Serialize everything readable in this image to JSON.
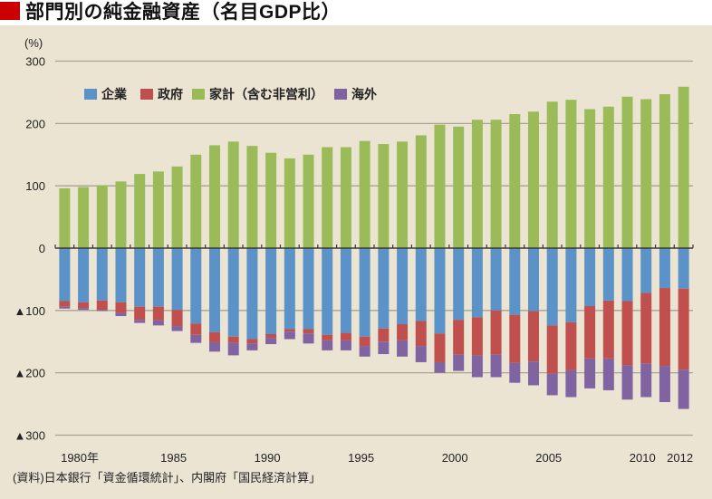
{
  "header": {
    "title": "部門別の純金融資産（名目GDP比）",
    "title_mark_color": "#cc0000"
  },
  "source": "(資料)日本銀行「資金循環統計」、内閣府「国民経済計算」",
  "chart_data": {
    "type": "bar",
    "stacked": true,
    "title": "部門別の純金融資産（名目GDP比）",
    "xlabel": "",
    "ylabel": "(%)",
    "ylim": [
      -300,
      300
    ],
    "grid": true,
    "legend_position": "top-left",
    "y_ticks": [
      {
        "value": 300,
        "label": "300"
      },
      {
        "value": 200,
        "label": "200"
      },
      {
        "value": 100,
        "label": "100"
      },
      {
        "value": 0,
        "label": "0"
      },
      {
        "value": -100,
        "label": "▲100"
      },
      {
        "value": -200,
        "label": "▲200"
      },
      {
        "value": -300,
        "label": "▲300"
      }
    ],
    "x_ticks": [
      {
        "year": 1980,
        "label": "1980年"
      },
      {
        "year": 1985,
        "label": "1985"
      },
      {
        "year": 1990,
        "label": "1990"
      },
      {
        "year": 1995,
        "label": "1995"
      },
      {
        "year": 2000,
        "label": "2000"
      },
      {
        "year": 2005,
        "label": "2005"
      },
      {
        "year": 2010,
        "label": "2010"
      },
      {
        "year": 2012,
        "label": "2012"
      }
    ],
    "categories": [
      1979,
      1980,
      1981,
      1982,
      1983,
      1984,
      1985,
      1986,
      1987,
      1988,
      1989,
      1990,
      1991,
      1992,
      1993,
      1994,
      1995,
      1996,
      1997,
      1998,
      1999,
      2000,
      2001,
      2002,
      2003,
      2004,
      2005,
      2006,
      2007,
      2008,
      2009,
      2010,
      2011,
      2012
    ],
    "series": [
      {
        "key": "corporate",
        "name": "企業",
        "color": "#5b93c9",
        "values": [
          -85,
          -87,
          -84,
          -87,
          -94,
          -94,
          -99,
          -121,
          -135,
          -142,
          -146,
          -138,
          -130,
          -130,
          -139,
          -136,
          -142,
          -129,
          -122,
          -117,
          -137,
          -115,
          -111,
          -100,
          -107,
          -101,
          -124,
          -119,
          -93,
          -84,
          -85,
          -72,
          -64,
          -65
        ]
      },
      {
        "key": "government",
        "name": "政府",
        "color": "#c0504d",
        "values": [
          -9,
          -9,
          -15,
          -17,
          -21,
          -22,
          -26,
          -18,
          -16,
          -10,
          -7,
          -6,
          -4,
          -7,
          -9,
          -12,
          -15,
          -21,
          -26,
          -40,
          -46,
          -56,
          -61,
          -71,
          -77,
          -81,
          -77,
          -77,
          -84,
          -93,
          -103,
          -113,
          -125,
          -130
        ]
      },
      {
        "key": "household",
        "name": "家計（含む非営利）",
        "color": "#9bbb59",
        "values": [
          96,
          98,
          101,
          107,
          119,
          123,
          131,
          150,
          165,
          171,
          164,
          153,
          144,
          150,
          162,
          162,
          172,
          167,
          171,
          181,
          198,
          195,
          206,
          206,
          215,
          219,
          235,
          238,
          223,
          227,
          243,
          239,
          247,
          259
        ]
      },
      {
        "key": "overseas",
        "name": "海外",
        "color": "#8064a2",
        "values": [
          -3,
          -3,
          -2,
          -5,
          -5,
          -8,
          -8,
          -13,
          -15,
          -20,
          -11,
          -10,
          -12,
          -16,
          -16,
          -16,
          -17,
          -20,
          -26,
          -26,
          -17,
          -26,
          -35,
          -36,
          -32,
          -38,
          -35,
          -43,
          -48,
          -51,
          -55,
          -54,
          -58,
          -63
        ]
      }
    ]
  }
}
